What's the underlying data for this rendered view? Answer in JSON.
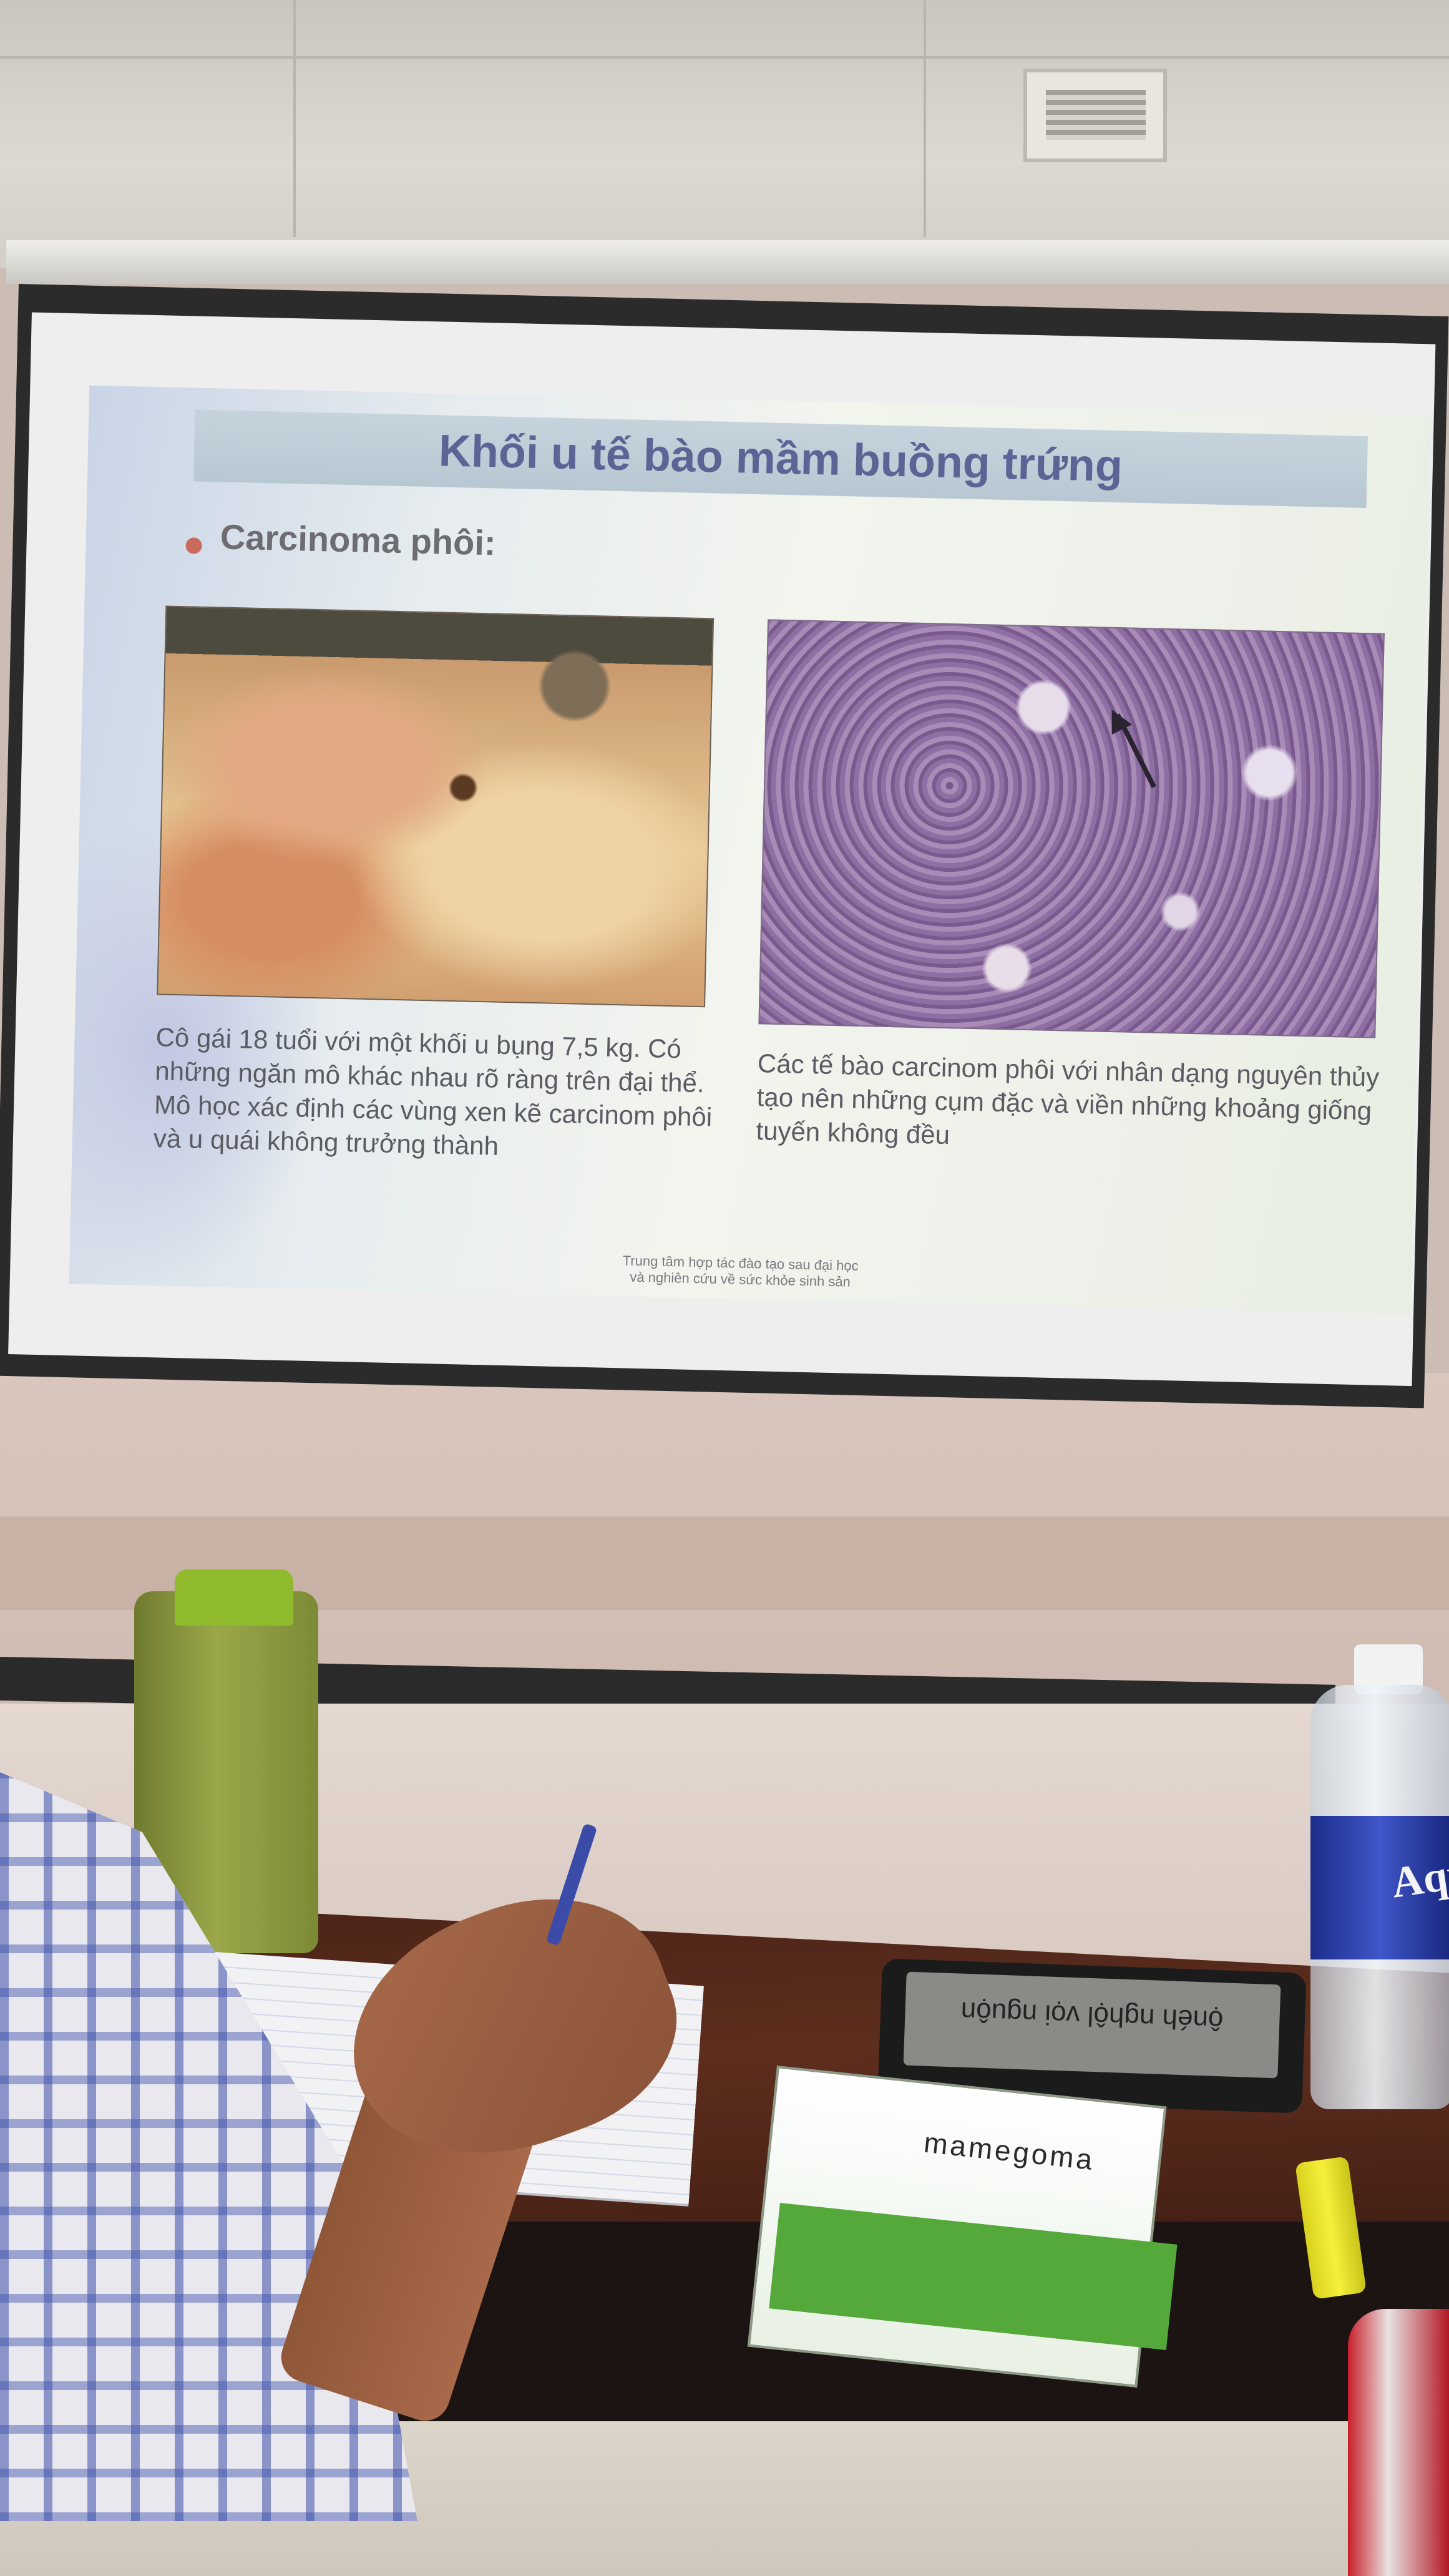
{
  "slide": {
    "title": "Khối u tế bào mầm buồng trứng",
    "bullet": "Carcinoma phôi:",
    "caption_left": "Cô gái 18 tuổi với một khối u bụng 7,5 kg. Có những ngăn mô khác nhau rõ ràng trên đại thể. Mô học xác định các vùng xen kẽ carcinom phôi và u quái không trưởng thành",
    "caption_right": "Các tế bào carcinom phôi với nhân dạng nguyên thủy tạo nên những cụm đặc và viền những khoảng giống tuyến không đều",
    "footer_line1": "Trung tâm hợp tác đào tạo sau đại học",
    "footer_line2": "và nghiên cứu về sức khỏe sinh sản"
  },
  "desk": {
    "tablet_text": "ộnéh nghộl vọi nguộn",
    "book_title": "mamegoma",
    "water_label": "Aqu"
  },
  "colors": {
    "title": "#5c6495",
    "bullet": "#c96a5c",
    "caption": "#5b5b63"
  }
}
